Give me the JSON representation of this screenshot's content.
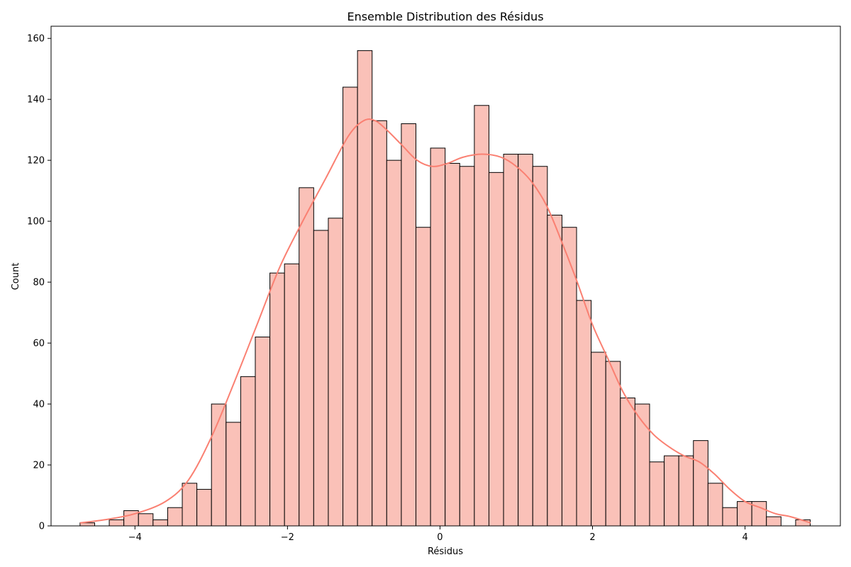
{
  "chart_data": {
    "type": "bar",
    "subtype": "histogram",
    "title": "Ensemble Distribution des Résidus",
    "xlabel": "Résidus",
    "ylabel": "Count",
    "xlim": [
      -5.1,
      5.25
    ],
    "ylim": [
      0,
      164
    ],
    "xticks": [
      -4,
      -2,
      0,
      2,
      4
    ],
    "xtick_labels": [
      "−4",
      "−2",
      "0",
      "2",
      "4"
    ],
    "yticks": [
      0,
      20,
      40,
      60,
      80,
      100,
      120,
      140,
      160
    ],
    "ytick_labels": [
      "0",
      "20",
      "40",
      "60",
      "80",
      "100",
      "120",
      "140",
      "160"
    ],
    "grid": false,
    "bar_color": "#fac1b8",
    "bar_edge_color": "#000000",
    "kde_color": "#fa8072",
    "bin_start": -4.72,
    "bin_width": 0.1915,
    "counts": [
      1,
      0,
      2,
      5,
      4,
      2,
      6,
      14,
      12,
      40,
      34,
      49,
      62,
      83,
      86,
      111,
      97,
      101,
      144,
      156,
      133,
      120,
      132,
      98,
      124,
      119,
      118,
      138,
      116,
      122,
      122,
      118,
      102,
      98,
      74,
      57,
      54,
      42,
      40,
      21,
      23,
      23,
      28,
      14,
      6,
      8,
      8,
      3,
      0,
      2
    ],
    "kde": {
      "x": [
        -4.72,
        -4.4,
        -4.0,
        -3.6,
        -3.3,
        -3.0,
        -2.7,
        -2.4,
        -2.1,
        -1.8,
        -1.5,
        -1.2,
        -1.0,
        -0.85,
        -0.7,
        -0.5,
        -0.3,
        -0.1,
        0.1,
        0.3,
        0.55,
        0.8,
        1.0,
        1.2,
        1.4,
        1.6,
        1.8,
        2.0,
        2.2,
        2.4,
        2.6,
        2.8,
        3.0,
        3.2,
        3.4,
        3.6,
        3.8,
        4.0,
        4.2,
        4.4,
        4.6,
        4.86
      ],
      "y": [
        1,
        2,
        4,
        8,
        15,
        29,
        47,
        66,
        85,
        100,
        114,
        128,
        133,
        133,
        130,
        125,
        120,
        118,
        119,
        121,
        122,
        121,
        118,
        113,
        105,
        93,
        80,
        66,
        55,
        44,
        36,
        30,
        26,
        23,
        21,
        17,
        12,
        8,
        6,
        4,
        3,
        1
      ]
    }
  }
}
